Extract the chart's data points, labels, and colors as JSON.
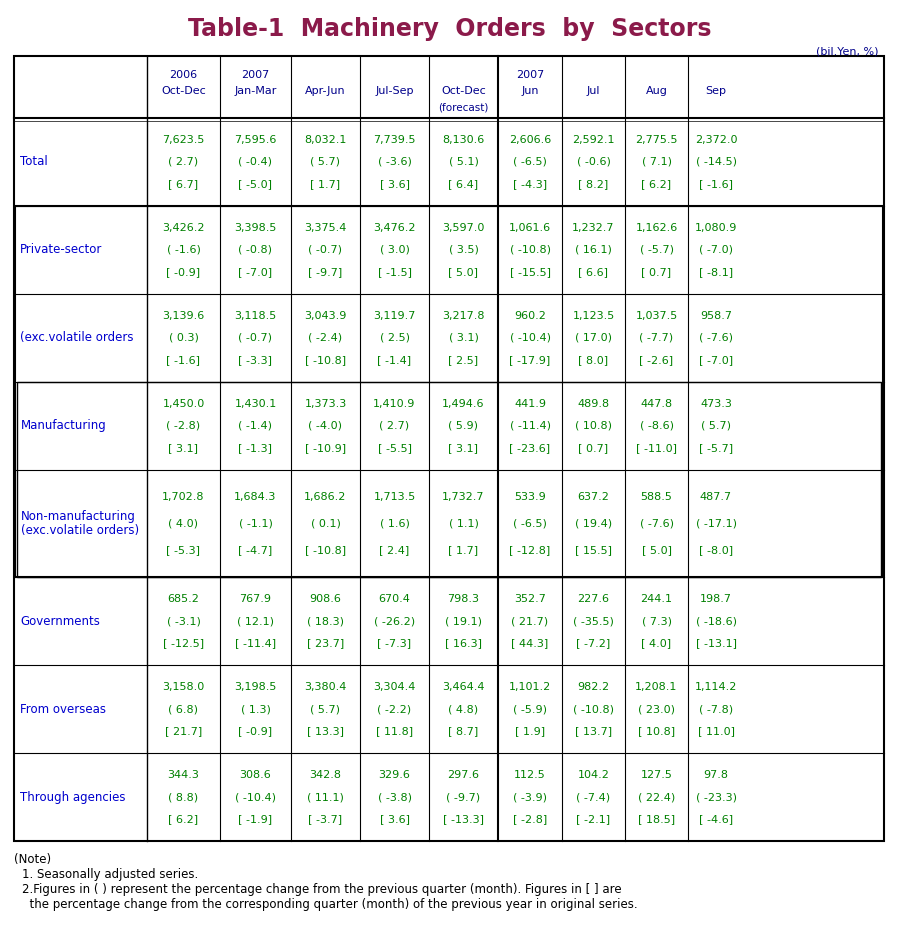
{
  "title": "Table-1  Machinery  Orders  by  Sectors",
  "unit_note": "(bil.Yen, %)",
  "title_color": "#8B1A4A",
  "header_color": "#00008B",
  "data_color": "#008000",
  "label_color": "#0000CD",
  "notes_color": "#00008B",
  "rows": [
    {
      "label": "Total",
      "sub_group": false,
      "inner_box": false,
      "data": [
        [
          "7,623.5",
          "( 2.7)",
          "[ 6.7]"
        ],
        [
          "7,595.6",
          "( -0.4)",
          "[ -5.0]"
        ],
        [
          "8,032.1",
          "( 5.7)",
          "[ 1.7]"
        ],
        [
          "7,739.5",
          "( -3.6)",
          "[ 3.6]"
        ],
        [
          "8,130.6",
          "( 5.1)",
          "[ 6.4]"
        ],
        [
          "2,606.6",
          "( -6.5)",
          "[ -4.3]"
        ],
        [
          "2,592.1",
          "( -0.6)",
          "[ 8.2]"
        ],
        [
          "2,775.5",
          "( 7.1)",
          "[ 6.2]"
        ],
        [
          "2,372.0",
          "( -14.5)",
          "[ -1.6]"
        ]
      ]
    },
    {
      "label": "Private-sector",
      "sub_group": false,
      "inner_box": false,
      "data": [
        [
          "3,426.2",
          "( -1.6)",
          "[ -0.9]"
        ],
        [
          "3,398.5",
          "( -0.8)",
          "[ -7.0]"
        ],
        [
          "3,375.4",
          "( -0.7)",
          "[ -9.7]"
        ],
        [
          "3,476.2",
          "( 3.0)",
          "[ -1.5]"
        ],
        [
          "3,597.0",
          "( 3.5)",
          "[ 5.0]"
        ],
        [
          "1,061.6",
          "( -10.8)",
          "[ -15.5]"
        ],
        [
          "1,232.7",
          "( 16.1)",
          "[ 6.6]"
        ],
        [
          "1,162.6",
          "( -5.7)",
          "[ 0.7]"
        ],
        [
          "1,080.9",
          "( -7.0)",
          "[ -8.1]"
        ]
      ]
    },
    {
      "label": "(exc.volatile orders",
      "sub_group": false,
      "inner_box": false,
      "data": [
        [
          "3,139.6",
          "( 0.3)",
          "[ -1.6]"
        ],
        [
          "3,118.5",
          "( -0.7)",
          "[ -3.3]"
        ],
        [
          "3,043.9",
          "( -2.4)",
          "[ -10.8]"
        ],
        [
          "3,119.7",
          "( 2.5)",
          "[ -1.4]"
        ],
        [
          "3,217.8",
          "( 3.1)",
          "[ 2.5]"
        ],
        [
          "960.2",
          "( -10.4)",
          "[ -17.9]"
        ],
        [
          "1,123.5",
          "( 17.0)",
          "[ 8.0]"
        ],
        [
          "1,037.5",
          "( -7.7)",
          "[ -2.6]"
        ],
        [
          "958.7",
          "( -7.6)",
          "[ -7.0]"
        ]
      ]
    },
    {
      "label": "Manufacturing",
      "sub_group": true,
      "inner_box": false,
      "data": [
        [
          "1,450.0",
          "( -2.8)",
          "[ 3.1]"
        ],
        [
          "1,430.1",
          "( -1.4)",
          "[ -1.3]"
        ],
        [
          "1,373.3",
          "( -4.0)",
          "[ -10.9]"
        ],
        [
          "1,410.9",
          "( 2.7)",
          "[ -5.5]"
        ],
        [
          "1,494.6",
          "( 5.9)",
          "[ 3.1]"
        ],
        [
          "441.9",
          "( -11.4)",
          "[ -23.6]"
        ],
        [
          "489.8",
          "( 10.8)",
          "[ 0.7]"
        ],
        [
          "447.8",
          "( -8.6)",
          "[ -11.0]"
        ],
        [
          "473.3",
          "( 5.7)",
          "[ -5.7]"
        ]
      ]
    },
    {
      "label": "Non-manufacturing\n(exc.volatile orders)",
      "sub_group": true,
      "inner_box": false,
      "data": [
        [
          "1,702.8",
          "( 4.0)",
          "[ -5.3]"
        ],
        [
          "1,684.3",
          "( -1.1)",
          "[ -4.7]"
        ],
        [
          "1,686.2",
          "( 0.1)",
          "[ -10.8]"
        ],
        [
          "1,713.5",
          "( 1.6)",
          "[ 2.4]"
        ],
        [
          "1,732.7",
          "( 1.1)",
          "[ 1.7]"
        ],
        [
          "533.9",
          "( -6.5)",
          "[ -12.8]"
        ],
        [
          "637.2",
          "( 19.4)",
          "[ 15.5]"
        ],
        [
          "588.5",
          "( -7.6)",
          "[ 5.0]"
        ],
        [
          "487.7",
          "( -17.1)",
          "[ -8.0]"
        ]
      ]
    },
    {
      "label": "Governments",
      "sub_group": false,
      "inner_box": false,
      "data": [
        [
          "685.2",
          "( -3.1)",
          "[ -12.5]"
        ],
        [
          "767.9",
          "( 12.1)",
          "[ -11.4]"
        ],
        [
          "908.6",
          "( 18.3)",
          "[ 23.7]"
        ],
        [
          "670.4",
          "( -26.2)",
          "[ -7.3]"
        ],
        [
          "798.3",
          "( 19.1)",
          "[ 16.3]"
        ],
        [
          "352.7",
          "( 21.7)",
          "[ 44.3]"
        ],
        [
          "227.6",
          "( -35.5)",
          "[ -7.2]"
        ],
        [
          "244.1",
          "( 7.3)",
          "[ 4.0]"
        ],
        [
          "198.7",
          "( -18.6)",
          "[ -13.1]"
        ]
      ]
    },
    {
      "label": "From overseas",
      "sub_group": false,
      "inner_box": false,
      "data": [
        [
          "3,158.0",
          "( 6.8)",
          "[ 21.7]"
        ],
        [
          "3,198.5",
          "( 1.3)",
          "[ -0.9]"
        ],
        [
          "3,380.4",
          "( 5.7)",
          "[ 13.3]"
        ],
        [
          "3,304.4",
          "( -2.2)",
          "[ 11.8]"
        ],
        [
          "3,464.4",
          "( 4.8)",
          "[ 8.7]"
        ],
        [
          "1,101.2",
          "( -5.9)",
          "[ 1.9]"
        ],
        [
          "982.2",
          "( -10.8)",
          "[ 13.7]"
        ],
        [
          "1,208.1",
          "( 23.0)",
          "[ 10.8]"
        ],
        [
          "1,114.2",
          "( -7.8)",
          "[ 11.0]"
        ]
      ]
    },
    {
      "label": "Through agencies",
      "sub_group": false,
      "inner_box": false,
      "data": [
        [
          "344.3",
          "( 8.8)",
          "[ 6.2]"
        ],
        [
          "308.6",
          "( -10.4)",
          "[ -1.9]"
        ],
        [
          "342.8",
          "( 11.1)",
          "[ -3.7]"
        ],
        [
          "329.6",
          "( -3.8)",
          "[ 3.6]"
        ],
        [
          "297.6",
          "( -9.7)",
          "[ -13.3]"
        ],
        [
          "112.5",
          "( -3.9)",
          "[ -2.8]"
        ],
        [
          "104.2",
          "( -7.4)",
          "[ -2.1]"
        ],
        [
          "127.5",
          "( 22.4)",
          "[ 18.5]"
        ],
        [
          "97.8",
          "( -23.3)",
          "[ -4.6]"
        ]
      ]
    }
  ],
  "notes": [
    "(Note)",
    "1. Seasonally adjusted series.",
    "2.Figures in ( ) represent the percentage change from the previous quarter (month). Figures in [ ] are",
    "  the percentage change from the corresponding quarter (month) of the previous year in original series."
  ]
}
